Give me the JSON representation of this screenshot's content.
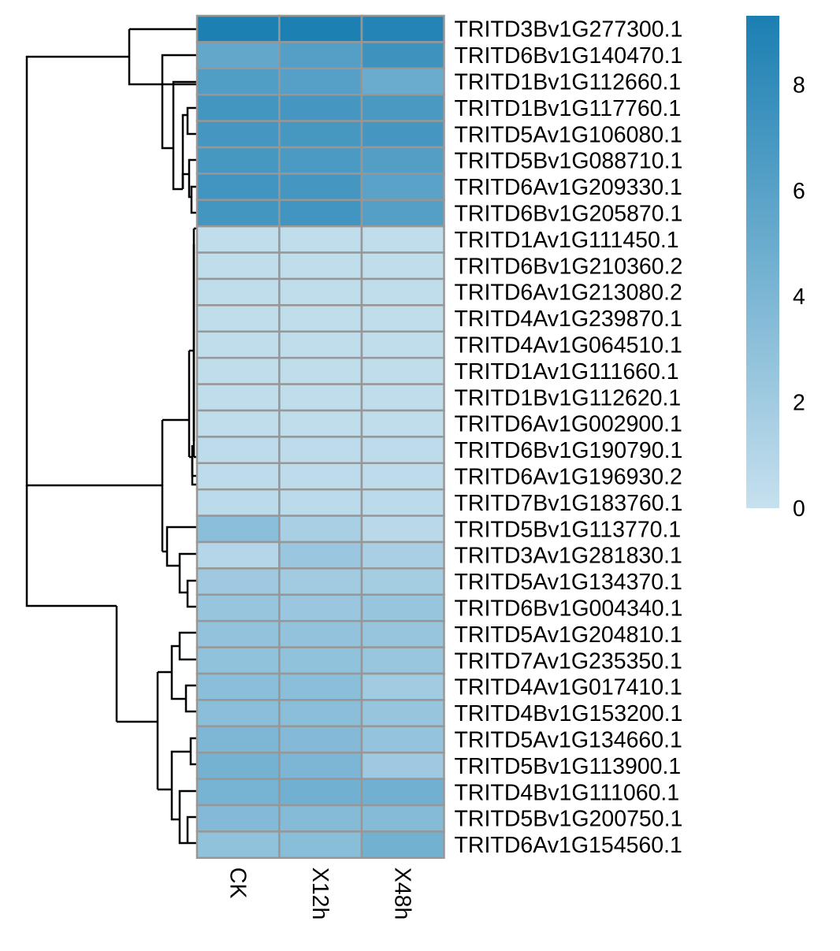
{
  "chart_data": {
    "type": "heatmap",
    "title": "",
    "columns": [
      "CK",
      "X12h",
      "X48h"
    ],
    "rows": [
      "TRITD3Bv1G277300.1",
      "TRITD6Bv1G140470.1",
      "TRITD1Bv1G112660.1",
      "TRITD1Bv1G117760.1",
      "TRITD5Av1G106080.1",
      "TRITD5Bv1G088710.1",
      "TRITD6Av1G209330.1",
      "TRITD6Bv1G205870.1",
      "TRITD1Av1G111450.1",
      "TRITD6Bv1G210360.2",
      "TRITD6Av1G213080.2",
      "TRITD4Av1G239870.1",
      "TRITD4Av1G064510.1",
      "TRITD1Av1G111660.1",
      "TRITD1Bv1G112620.1",
      "TRITD6Av1G002900.1",
      "TRITD6Bv1G190790.1",
      "TRITD6Av1G196930.2",
      "TRITD7Bv1G183760.1",
      "TRITD5Bv1G113770.1",
      "TRITD3Av1G281830.1",
      "TRITD5Av1G134370.1",
      "TRITD6Bv1G004340.1",
      "TRITD5Av1G204810.1",
      "TRITD7Av1G235350.1",
      "TRITD4Av1G017410.1",
      "TRITD4Bv1G153200.1",
      "TRITD5Av1G134660.1",
      "TRITD5Bv1G113900.1",
      "TRITD4Bv1G111060.1",
      "TRITD5Bv1G200750.1",
      "TRITD6Av1G154560.1"
    ],
    "values": [
      [
        9.2,
        9.2,
        8.8
      ],
      [
        5.4,
        6.2,
        7.4
      ],
      [
        6.4,
        6.1,
        5.0
      ],
      [
        7.1,
        7.0,
        6.8
      ],
      [
        7.0,
        6.9,
        7.0
      ],
      [
        6.9,
        6.7,
        6.3
      ],
      [
        7.2,
        7.0,
        5.9
      ],
      [
        7.1,
        7.2,
        6.2
      ],
      [
        0.3,
        0.3,
        0.3
      ],
      [
        0.3,
        0.3,
        0.3
      ],
      [
        0.3,
        0.3,
        0.3
      ],
      [
        0.3,
        0.3,
        0.3
      ],
      [
        0.3,
        0.3,
        0.3
      ],
      [
        0.3,
        0.3,
        0.3
      ],
      [
        0.3,
        0.3,
        0.3
      ],
      [
        0.3,
        0.3,
        0.3
      ],
      [
        0.5,
        0.5,
        0.5
      ],
      [
        0.5,
        0.5,
        0.5
      ],
      [
        0.6,
        0.6,
        0.6
      ],
      [
        3.2,
        1.6,
        0.7
      ],
      [
        1.0,
        2.4,
        1.6
      ],
      [
        2.2,
        2.0,
        1.8
      ],
      [
        2.6,
        2.4,
        2.6
      ],
      [
        2.8,
        2.8,
        2.6
      ],
      [
        2.9,
        2.9,
        2.5
      ],
      [
        3.2,
        3.2,
        2.0
      ],
      [
        3.2,
        3.2,
        2.6
      ],
      [
        3.9,
        3.6,
        2.7
      ],
      [
        4.4,
        4.0,
        2.2
      ],
      [
        4.3,
        4.6,
        4.6
      ],
      [
        3.6,
        3.5,
        3.5
      ],
      [
        2.9,
        3.3,
        4.5
      ]
    ],
    "colorbar": {
      "min": 0,
      "max": 9.3,
      "ticks": [
        0,
        2,
        4,
        6,
        8
      ],
      "low_color": "#c6e0ee",
      "high_color": "#1b7fb2"
    },
    "cell_border_color": "#979797",
    "dendrogram": "rows",
    "legend_placement": "right",
    "grid": false
  }
}
